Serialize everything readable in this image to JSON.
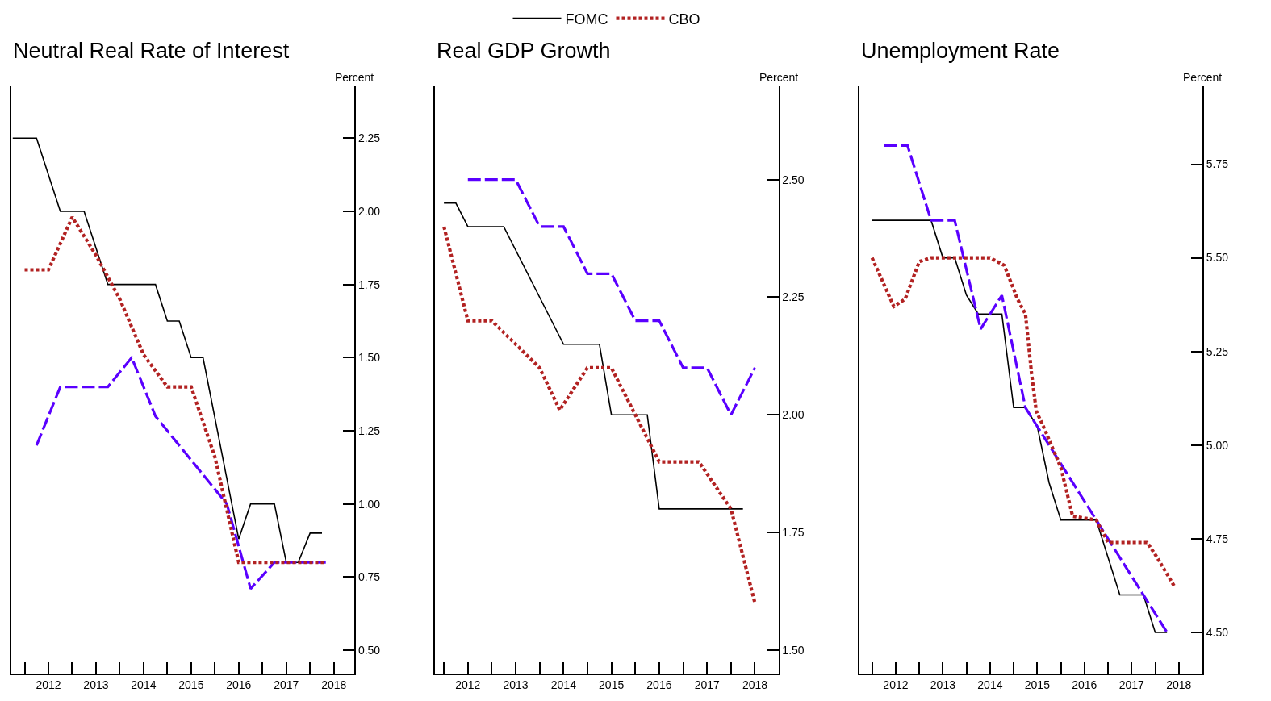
{
  "chart_data": [
    {
      "type": "line",
      "title": "Neutral Real Rate of Interest",
      "ylabel": "Percent",
      "legend": "top",
      "xlim": [
        2011.72,
        2018.93
      ],
      "ylim": [
        0.42,
        2.43
      ],
      "xticks": [
        {
          "value": 2012,
          "label": null
        },
        {
          "value": 2012.5,
          "label": "2012"
        },
        {
          "value": 2013,
          "label": null
        },
        {
          "value": 2013.5,
          "label": "2013"
        },
        {
          "value": 2014,
          "label": null
        },
        {
          "value": 2014.5,
          "label": "2014"
        },
        {
          "value": 2015,
          "label": null
        },
        {
          "value": 2015.5,
          "label": "2015"
        },
        {
          "value": 2016,
          "label": null
        },
        {
          "value": 2016.5,
          "label": "2016"
        },
        {
          "value": 2017,
          "label": null
        },
        {
          "value": 2017.5,
          "label": "2017"
        },
        {
          "value": 2018,
          "label": null
        },
        {
          "value": 2018.5,
          "label": "2018"
        }
      ],
      "yticks": [
        {
          "value": 0.5,
          "label": "0.50"
        },
        {
          "value": 0.75,
          "label": "0.75"
        },
        {
          "value": 1.0,
          "label": "1.00"
        },
        {
          "value": 1.25,
          "label": "1.25"
        },
        {
          "value": 1.5,
          "label": "1.50"
        },
        {
          "value": 1.75,
          "label": "1.75"
        },
        {
          "value": 2.0,
          "label": "2.00"
        },
        {
          "value": 2.25,
          "label": "2.25"
        }
      ],
      "series": [
        {
          "name": "FOMC",
          "color": "#000000",
          "line_style": "solid",
          "x": [
            2011.75,
            2012.25,
            2012.75,
            2013.25,
            2013.75,
            2014.75,
            2015.0,
            2015.25,
            2015.5,
            2015.75,
            2016.5,
            2016.75,
            2017.25,
            2017.5,
            2017.75,
            2018.0,
            2018.25
          ],
          "values": [
            2.25,
            2.25,
            2.0,
            2.0,
            1.75,
            1.75,
            1.625,
            1.625,
            1.5,
            1.5,
            0.88,
            1.0,
            1.0,
            0.8,
            0.8,
            0.9,
            0.9
          ]
        },
        {
          "color": "#5a00ff",
          "line_style": "dashed",
          "x": [
            2012.25,
            2012.75,
            2013.75,
            2014.25,
            2014.75,
            2016.25,
            2016.75,
            2017.25,
            2018.33
          ],
          "values": [
            1.2,
            1.4,
            1.4,
            1.5,
            1.3,
            1.0,
            0.71,
            0.8,
            0.8
          ]
        },
        {
          "name": "CBO",
          "color": "#b22222",
          "line_style": "dotted",
          "x": [
            2012.0,
            2012.5,
            2013.0,
            2013.5,
            2014.0,
            2014.5,
            2015.0,
            2015.5,
            2016.0,
            2016.5,
            2018.33
          ],
          "values": [
            1.8,
            1.8,
            1.98,
            1.85,
            1.7,
            1.51,
            1.4,
            1.4,
            1.16,
            0.8,
            0.8
          ]
        }
      ]
    },
    {
      "type": "line",
      "title": "Real GDP Growth",
      "ylabel": "Percent",
      "xlim": [
        2011.82,
        2018.99
      ],
      "ylim": [
        1.45,
        2.7
      ],
      "xticks": [
        {
          "value": 2012,
          "label": null
        },
        {
          "value": 2012.5,
          "label": "2012"
        },
        {
          "value": 2013,
          "label": null
        },
        {
          "value": 2013.5,
          "label": "2013"
        },
        {
          "value": 2014,
          "label": null
        },
        {
          "value": 2014.5,
          "label": "2014"
        },
        {
          "value": 2015,
          "label": null
        },
        {
          "value": 2015.5,
          "label": "2015"
        },
        {
          "value": 2016,
          "label": null
        },
        {
          "value": 2016.5,
          "label": "2016"
        },
        {
          "value": 2017,
          "label": null
        },
        {
          "value": 2017.5,
          "label": "2017"
        },
        {
          "value": 2018,
          "label": null
        },
        {
          "value": 2018.5,
          "label": "2018"
        }
      ],
      "yticks": [
        {
          "value": 1.5,
          "label": "1.50"
        },
        {
          "value": 1.75,
          "label": "1.75"
        },
        {
          "value": 2.0,
          "label": "2.00"
        },
        {
          "value": 2.25,
          "label": "2.25"
        },
        {
          "value": 2.5,
          "label": "2.50"
        }
      ],
      "series": [
        {
          "color": "#000000",
          "line_style": "solid",
          "x": [
            2012.0,
            2012.25,
            2012.5,
            2013.25,
            2014.5,
            2015.25,
            2015.5,
            2016.25,
            2016.5,
            2018.25
          ],
          "values": [
            2.45,
            2.45,
            2.4,
            2.4,
            2.15,
            2.15,
            2.0,
            2.0,
            1.8,
            1.8
          ]
        },
        {
          "color": "#5a00ff",
          "line_style": "dashed",
          "x": [
            2012.5,
            2013.5,
            2014.0,
            2014.5,
            2015.0,
            2015.5,
            2016.0,
            2016.5,
            2017.0,
            2017.5,
            2018.0,
            2018.5
          ],
          "values": [
            2.5,
            2.5,
            2.4,
            2.4,
            2.3,
            2.3,
            2.2,
            2.2,
            2.1,
            2.1,
            2.0,
            2.1
          ]
        },
        {
          "color": "#b22222",
          "line_style": "dotted",
          "x": [
            2012.0,
            2012.5,
            2013.0,
            2014.0,
            2014.42,
            2015.0,
            2015.5,
            2016.0,
            2016.5,
            2017.33,
            2018.0,
            2018.5
          ],
          "values": [
            2.4,
            2.2,
            2.2,
            2.1,
            2.01,
            2.1,
            2.1,
            2.0,
            1.9,
            1.9,
            1.8,
            1.6
          ]
        }
      ]
    },
    {
      "type": "line",
      "title": "Unemployment Rate",
      "ylabel": "Percent",
      "xlim": [
        2011.73,
        2019.0
      ],
      "ylim": [
        4.39,
        5.96
      ],
      "xticks": [
        {
          "value": 2012,
          "label": null
        },
        {
          "value": 2012.5,
          "label": "2012"
        },
        {
          "value": 2013,
          "label": null
        },
        {
          "value": 2013.5,
          "label": "2013"
        },
        {
          "value": 2014,
          "label": null
        },
        {
          "value": 2014.5,
          "label": "2014"
        },
        {
          "value": 2015,
          "label": null
        },
        {
          "value": 2015.5,
          "label": "2015"
        },
        {
          "value": 2016,
          "label": null
        },
        {
          "value": 2016.5,
          "label": "2016"
        },
        {
          "value": 2017,
          "label": null
        },
        {
          "value": 2017.5,
          "label": "2017"
        },
        {
          "value": 2018,
          "label": null
        },
        {
          "value": 2018.5,
          "label": "2018"
        }
      ],
      "yticks": [
        {
          "value": 4.5,
          "label": "4.50"
        },
        {
          "value": 4.75,
          "label": "4.75"
        },
        {
          "value": 5.0,
          "label": "5.00"
        },
        {
          "value": 5.25,
          "label": "5.25"
        },
        {
          "value": 5.5,
          "label": "5.50"
        },
        {
          "value": 5.75,
          "label": "5.75"
        }
      ],
      "series": [
        {
          "color": "#000000",
          "line_style": "solid",
          "x": [
            2012.0,
            2013.25,
            2013.5,
            2013.75,
            2014.0,
            2014.25,
            2014.75,
            2015.0,
            2015.25,
            2015.5,
            2015.75,
            2016.0,
            2016.75,
            2017.25,
            2017.75,
            2018.0,
            2018.25
          ],
          "values": [
            5.6,
            5.6,
            5.5,
            5.5,
            5.4,
            5.35,
            5.35,
            5.1,
            5.1,
            5.05,
            4.9,
            4.8,
            4.8,
            4.6,
            4.6,
            4.5,
            4.5
          ]
        },
        {
          "color": "#5a00ff",
          "line_style": "dashed",
          "x": [
            2012.25,
            2012.75,
            2013.25,
            2013.75,
            2014.3,
            2014.75,
            2015.25,
            2018.25
          ],
          "values": [
            5.8,
            5.8,
            5.6,
            5.6,
            5.31,
            5.4,
            5.1,
            4.5
          ]
        },
        {
          "color": "#b22222",
          "line_style": "dotted",
          "x": [
            2012.0,
            2012.46,
            2012.7,
            2013.0,
            2013.25,
            2014.5,
            2014.8,
            2015.08,
            2015.25,
            2015.38,
            2015.48,
            2015.63,
            2016.0,
            2016.25,
            2016.75,
            2017.0,
            2017.83,
            2018.04,
            2018.42
          ],
          "values": [
            5.5,
            5.37,
            5.39,
            5.49,
            5.5,
            5.5,
            5.48,
            5.39,
            5.35,
            5.19,
            5.09,
            5.05,
            4.94,
            4.81,
            4.8,
            4.74,
            4.74,
            4.7,
            4.62
          ]
        }
      ]
    }
  ]
}
